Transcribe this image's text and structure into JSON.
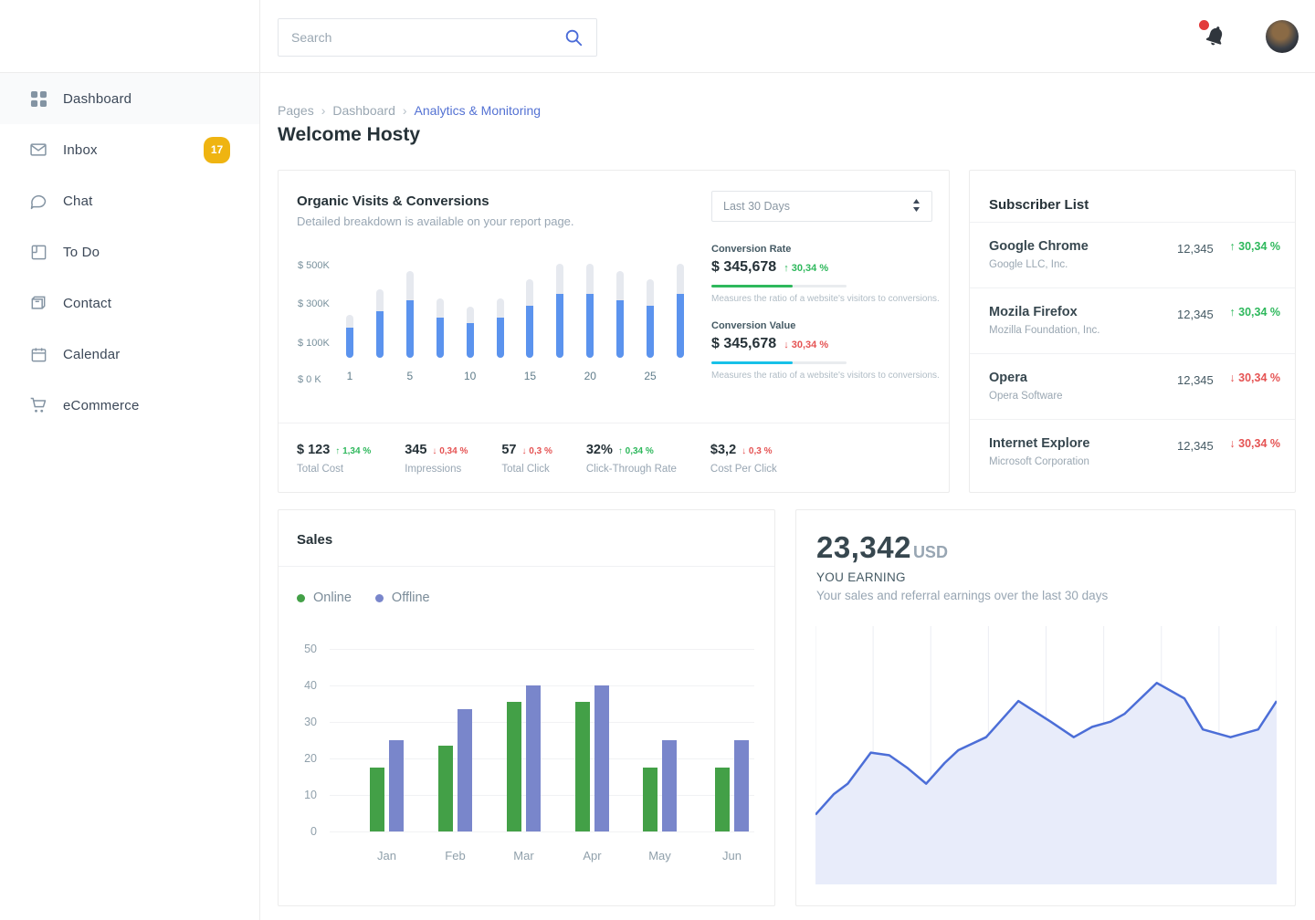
{
  "topbar": {
    "search_placeholder": "Search"
  },
  "sidebar": {
    "items": [
      {
        "label": "Dashboard",
        "icon": "grid-icon",
        "active": true
      },
      {
        "label": "Inbox",
        "icon": "mail-icon",
        "badge": "17"
      },
      {
        "label": "Chat",
        "icon": "chat-icon"
      },
      {
        "label": "To Do",
        "icon": "todo-icon"
      },
      {
        "label": "Contact",
        "icon": "contact-icon"
      },
      {
        "label": "Calendar",
        "icon": "calendar-icon"
      },
      {
        "label": "eCommerce",
        "icon": "cart-icon"
      }
    ],
    "badge_color": "#efb411"
  },
  "breadcrumb": {
    "items": [
      "Pages",
      "Dashboard",
      "Analytics & Monitoring"
    ]
  },
  "page": {
    "title": "Welcome Hosty"
  },
  "organic": {
    "title": "Organic Visits & Conversions",
    "subtitle": "Detailed breakdown is available on your report page.",
    "period": "Last 30 Days",
    "conversion_rate": {
      "label": "Conversion Rate",
      "value": "$ 345,678",
      "delta": "30,34 %",
      "direction": "up",
      "progress": 60,
      "bar_color": "#2eb85c",
      "desc": "Measures the ratio of a website's visitors to conversions."
    },
    "conversion_value": {
      "label": "Conversion Value",
      "value": "$ 345,678",
      "delta": "30,34 %",
      "direction": "down",
      "progress": 60,
      "bar_color": "#17c1e8",
      "desc": "Measures the ratio of a website's visitors to conversions."
    },
    "stats": [
      {
        "value": "$ 123",
        "delta": "1,34 %",
        "direction": "up",
        "label": "Total Cost"
      },
      {
        "value": "345",
        "delta": "0,34 %",
        "direction": "down",
        "label": "Impressions"
      },
      {
        "value": "57",
        "delta": "0,3 %",
        "direction": "down",
        "label": "Total Click"
      },
      {
        "value": "32%",
        "delta": "0,34 %",
        "direction": "up",
        "label": "Click-Through Rate"
      },
      {
        "value": "$3,2",
        "delta": "0,3 %",
        "direction": "down",
        "label": "Cost Per Click"
      }
    ]
  },
  "subscribers": {
    "title": "Subscriber List",
    "rows": [
      {
        "name": "Google Chrome",
        "company": "Google LLC, Inc.",
        "count": "12,345",
        "delta": "30,34 %",
        "direction": "up"
      },
      {
        "name": "Mozila Firefox",
        "company": "Mozilla Foundation, Inc.",
        "count": "12,345",
        "delta": "30,34 %",
        "direction": "up"
      },
      {
        "name": "Opera",
        "company": "Opera Software",
        "count": "12,345",
        "delta": "30,34 %",
        "direction": "down"
      },
      {
        "name": "Internet Explore",
        "company": "Microsoft Corporation",
        "count": "12,345",
        "delta": "30,34 %",
        "direction": "down"
      }
    ]
  },
  "sales": {
    "title": "Sales",
    "legend": [
      {
        "label": "Online",
        "color": "#43a047"
      },
      {
        "label": "Offline",
        "color": "#7986cb"
      }
    ]
  },
  "earnings": {
    "amount": "23,342",
    "currency": "USD",
    "label": "YOU EARNING",
    "desc": "Your sales and referral earnings over the last 30 days"
  },
  "chart_data": [
    {
      "id": "organic-visits",
      "type": "bar",
      "title": "Organic Visits & Conversions",
      "ylim": [
        0,
        520
      ],
      "ytick_labels": [
        "$ 500K",
        "$ 300K",
        "$ 100K",
        "$ 0 K"
      ],
      "ytick_values": [
        500,
        300,
        100,
        0
      ],
      "x_tick_labels": [
        "1",
        "5",
        "10",
        "15",
        "20",
        "25"
      ],
      "x_tick_bar_indexes": [
        0,
        2,
        4,
        6,
        8,
        10
      ],
      "unit": "K USD",
      "series": [
        {
          "name": "total-visits",
          "color": "#e6e9ef",
          "values": [
            230,
            370,
            465,
            320,
            275,
            320,
            420,
            505,
            505,
            465,
            420,
            505
          ]
        },
        {
          "name": "conversions",
          "color": "#5b93ee",
          "values": [
            160,
            250,
            310,
            215,
            185,
            215,
            280,
            345,
            345,
            310,
            280,
            345
          ]
        }
      ]
    },
    {
      "id": "sales",
      "type": "bar",
      "title": "Sales",
      "categories": [
        "Jan",
        "Feb",
        "Mar",
        "Apr",
        "May",
        "Jun"
      ],
      "ylim": [
        0,
        50
      ],
      "yticks": [
        0,
        10,
        20,
        30,
        40,
        50
      ],
      "grid": "horizontal",
      "legend_position": "top-left",
      "series": [
        {
          "name": "Online",
          "color": "#43a047",
          "values": [
            17.5,
            23.5,
            35.5,
            35.5,
            17.5,
            17.5
          ]
        },
        {
          "name": "Offline",
          "color": "#7986cb",
          "values": [
            25,
            33.5,
            40,
            40,
            25,
            25
          ]
        }
      ]
    },
    {
      "id": "earnings",
      "type": "area",
      "title": "YOU EARNING",
      "line_color": "#4c6ed7",
      "fill_color": "#e8ecfa",
      "grid": "vertical",
      "gridline_count": 9,
      "ylim": [
        0,
        100
      ],
      "x": [
        0,
        4,
        7,
        12,
        16,
        20,
        24,
        28,
        31,
        37,
        44,
        51,
        56,
        60,
        64,
        67,
        74,
        80,
        84,
        90,
        96,
        100
      ],
      "y": [
        27,
        35,
        39,
        51,
        50,
        45,
        39,
        47,
        52,
        57,
        71,
        63,
        57,
        61,
        63,
        66,
        78,
        72,
        60,
        57,
        60,
        71
      ]
    }
  ]
}
